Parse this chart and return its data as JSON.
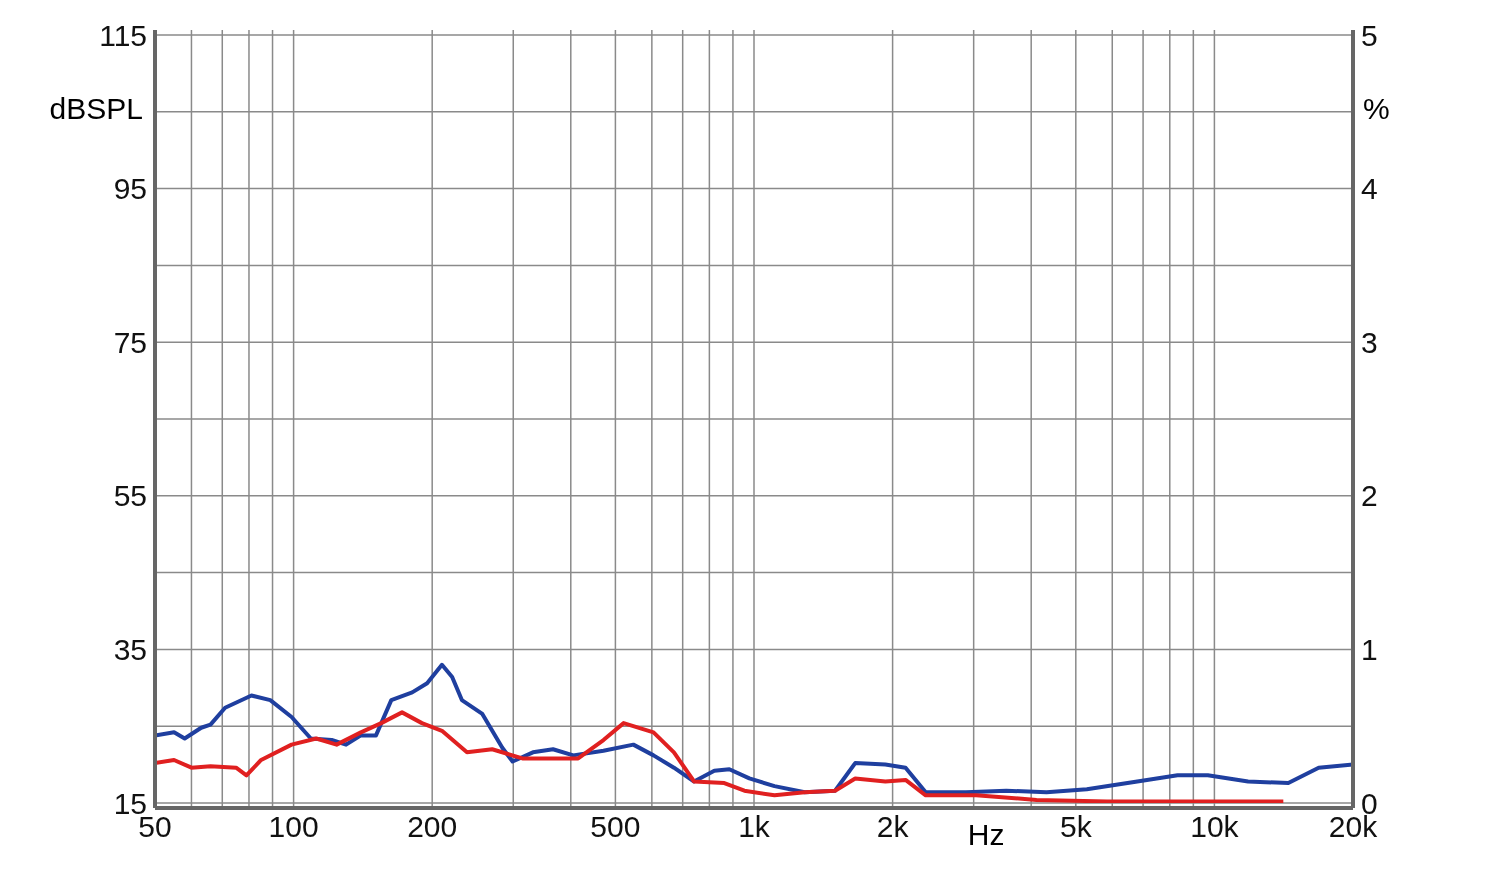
{
  "chart_data": {
    "type": "line",
    "xlabel": "Hz",
    "ylabel": "dBSPL",
    "y2label": "%",
    "log": "x",
    "grid": true,
    "marker": "none",
    "line_style": "solid",
    "xlim": [
      50,
      20000
    ],
    "xticks": [
      50,
      {
        "value": 60,
        "label": null
      },
      {
        "value": 70,
        "label": null
      },
      {
        "value": 80,
        "label": null
      },
      {
        "value": 90,
        "label": null
      },
      100,
      200,
      {
        "value": 300,
        "label": null
      },
      {
        "value": 400,
        "label": null
      },
      500,
      {
        "value": 600,
        "label": null
      },
      {
        "value": 700,
        "label": null
      },
      {
        "value": 800,
        "label": null
      },
      {
        "value": 900,
        "label": null
      },
      {
        "value": 1000,
        "label": "1k"
      },
      {
        "value": 2000,
        "label": "2k"
      },
      {
        "value": 3000,
        "label": null
      },
      {
        "value": 4000,
        "label": null
      },
      {
        "value": 5000,
        "label": "5k"
      },
      {
        "value": 6000,
        "label": null
      },
      {
        "value": 7000,
        "label": null
      },
      {
        "value": 8000,
        "label": null
      },
      {
        "value": 9000,
        "label": null
      },
      {
        "value": 10000,
        "label": "10k"
      },
      {
        "value": 20000,
        "label": "20k"
      }
    ],
    "ylim": [
      15,
      115
    ],
    "yticks": [
      15,
      {
        "value": 25,
        "label": null
      },
      35,
      {
        "value": 45,
        "label": null
      },
      55,
      {
        "value": 65,
        "label": null
      },
      75,
      {
        "value": 85,
        "label": null
      },
      95,
      {
        "value": 105,
        "label": null
      },
      115
    ],
    "y2lim": [
      0,
      5
    ],
    "y2ticks": [
      0,
      1,
      2,
      3,
      4,
      5
    ],
    "series": [
      {
        "color": "#1f3f9f",
        "axis": "y2",
        "x": [
          50,
          55,
          58,
          63,
          66,
          71,
          81,
          89,
          99,
          109,
          121,
          130,
          140,
          151,
          163,
          181,
          195,
          210,
          221,
          232,
          257,
          284,
          299,
          331,
          366,
          405,
          471,
          547,
          605,
          670,
          741,
          820,
          884,
          977,
          1108,
          1289,
          1500,
          1659,
          1929,
          2134,
          2360,
          2887,
          3532,
          4320,
          5284,
          6800,
          8317,
          9674,
          11835,
          14474,
          16846,
          20000
        ],
        "values": [
          0.44,
          0.46,
          0.42,
          0.49,
          0.51,
          0.62,
          0.7,
          0.67,
          0.56,
          0.42,
          0.41,
          0.38,
          0.44,
          0.44,
          0.67,
          0.72,
          0.78,
          0.9,
          0.82,
          0.67,
          0.58,
          0.36,
          0.27,
          0.33,
          0.35,
          0.31,
          0.34,
          0.38,
          0.31,
          0.23,
          0.14,
          0.21,
          0.22,
          0.16,
          0.11,
          0.07,
          0.08,
          0.26,
          0.25,
          0.23,
          0.07,
          0.07,
          0.08,
          0.07,
          0.09,
          0.14,
          0.18,
          0.18,
          0.14,
          0.13,
          0.23,
          0.25
        ]
      },
      {
        "color": "#e02020",
        "axis": "y2",
        "x": [
          50,
          55,
          60,
          66,
          75,
          79,
          85,
          99,
          112,
          124,
          140,
          155,
          172,
          190,
          210,
          238,
          270,
          314,
          366,
          415,
          471,
          521,
          605,
          670,
          741,
          862,
          953,
          1108,
          1289,
          1500,
          1659,
          1929,
          2134,
          2360,
          3036,
          4108,
          5844,
          9674,
          14115
        ],
        "values": [
          0.26,
          0.28,
          0.23,
          0.24,
          0.23,
          0.18,
          0.28,
          0.38,
          0.42,
          0.38,
          0.46,
          0.52,
          0.59,
          0.52,
          0.47,
          0.33,
          0.35,
          0.29,
          0.29,
          0.29,
          0.41,
          0.52,
          0.46,
          0.33,
          0.14,
          0.13,
          0.08,
          0.05,
          0.07,
          0.08,
          0.16,
          0.14,
          0.15,
          0.05,
          0.05,
          0.02,
          0.01,
          0.01,
          0.01
        ]
      }
    ]
  }
}
